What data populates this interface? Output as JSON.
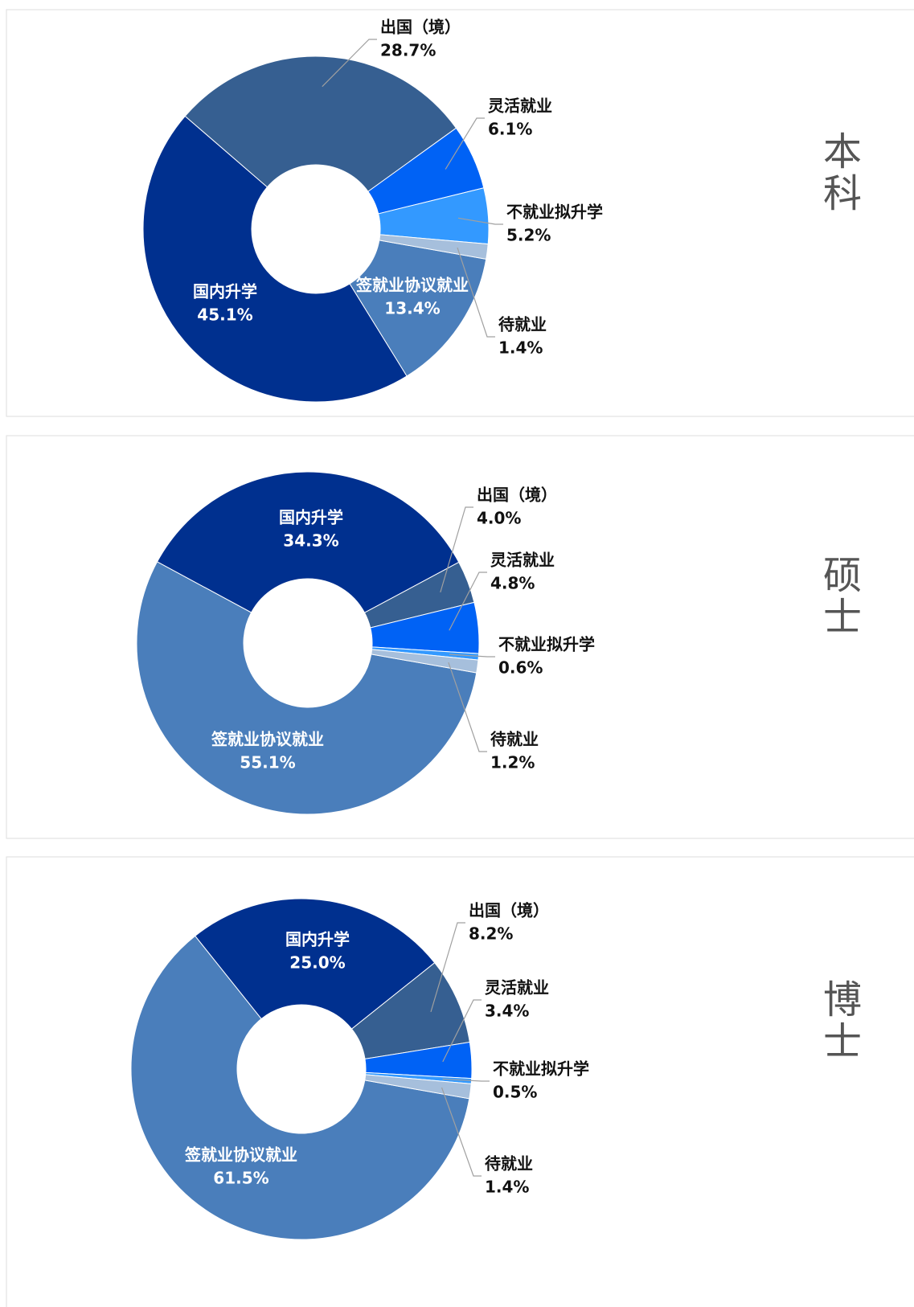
{
  "chart_data": [
    {
      "type": "pie",
      "title": "本科",
      "categories": [
        "签就业协议就业",
        "国内升学",
        "出国（境）",
        "灵活就业",
        "不就业拟升学",
        "待就业"
      ],
      "values": [
        13.4,
        45.1,
        28.7,
        6.1,
        5.2,
        1.4
      ],
      "value_labels": [
        "13.4%",
        "45.1%",
        "28.7%",
        "6.1%",
        "5.2%",
        "1.4%"
      ],
      "colors": [
        "#4a7ebb",
        "#00308f",
        "#365f91",
        "#0062f5",
        "#3399ff",
        "#a6bfdc"
      ]
    },
    {
      "type": "pie",
      "title": "硕士",
      "categories": [
        "签就业协议就业",
        "国内升学",
        "出国（境）",
        "灵活就业",
        "不就业拟升学",
        "待就业"
      ],
      "values": [
        55.1,
        34.3,
        4.0,
        4.8,
        0.6,
        1.2
      ],
      "value_labels": [
        "55.1%",
        "34.3%",
        "4.0%",
        "4.8%",
        "0.6%",
        "1.2%"
      ],
      "colors": [
        "#4a7ebb",
        "#00308f",
        "#365f91",
        "#0062f5",
        "#3399ff",
        "#a6bfdc"
      ]
    },
    {
      "type": "pie",
      "title": "博士",
      "categories": [
        "签就业协议就业",
        "国内升学",
        "出国（境）",
        "灵活就业",
        "不就业拟升学",
        "待就业"
      ],
      "values": [
        61.5,
        25.0,
        8.2,
        3.4,
        0.5,
        1.4
      ],
      "value_labels": [
        "61.5%",
        "25.0%",
        "8.2%",
        "3.4%",
        "0.5%",
        "1.4%"
      ],
      "colors": [
        "#4a7ebb",
        "#00308f",
        "#365f91",
        "#0062f5",
        "#3399ff",
        "#a6bfdc"
      ]
    }
  ]
}
